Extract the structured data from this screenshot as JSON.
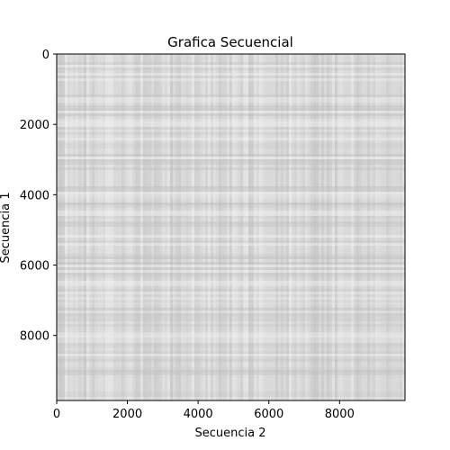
{
  "chart_data": {
    "type": "heatmap",
    "title": "Grafica Secuencial",
    "xlabel": "Secuencia 2",
    "ylabel": "Secuencia 1",
    "xlim": [
      0,
      9850
    ],
    "ylim": [
      9850,
      0
    ],
    "x_ticks": [
      0,
      2000,
      4000,
      6000,
      8000
    ],
    "y_ticks": [
      0,
      2000,
      4000,
      6000,
      8000
    ],
    "x_tick_labels": [
      "0",
      "2000",
      "4000",
      "6000",
      "8000"
    ],
    "y_tick_labels": [
      "0",
      "2000",
      "4000",
      "6000",
      "8000"
    ],
    "colormap": "gray",
    "grid": false,
    "colors": {
      "background_cell": "#d9d9d9",
      "light_cell": "#f2f2f2",
      "dark_cell": "#bdbdbd",
      "axis": "#000000"
    }
  }
}
